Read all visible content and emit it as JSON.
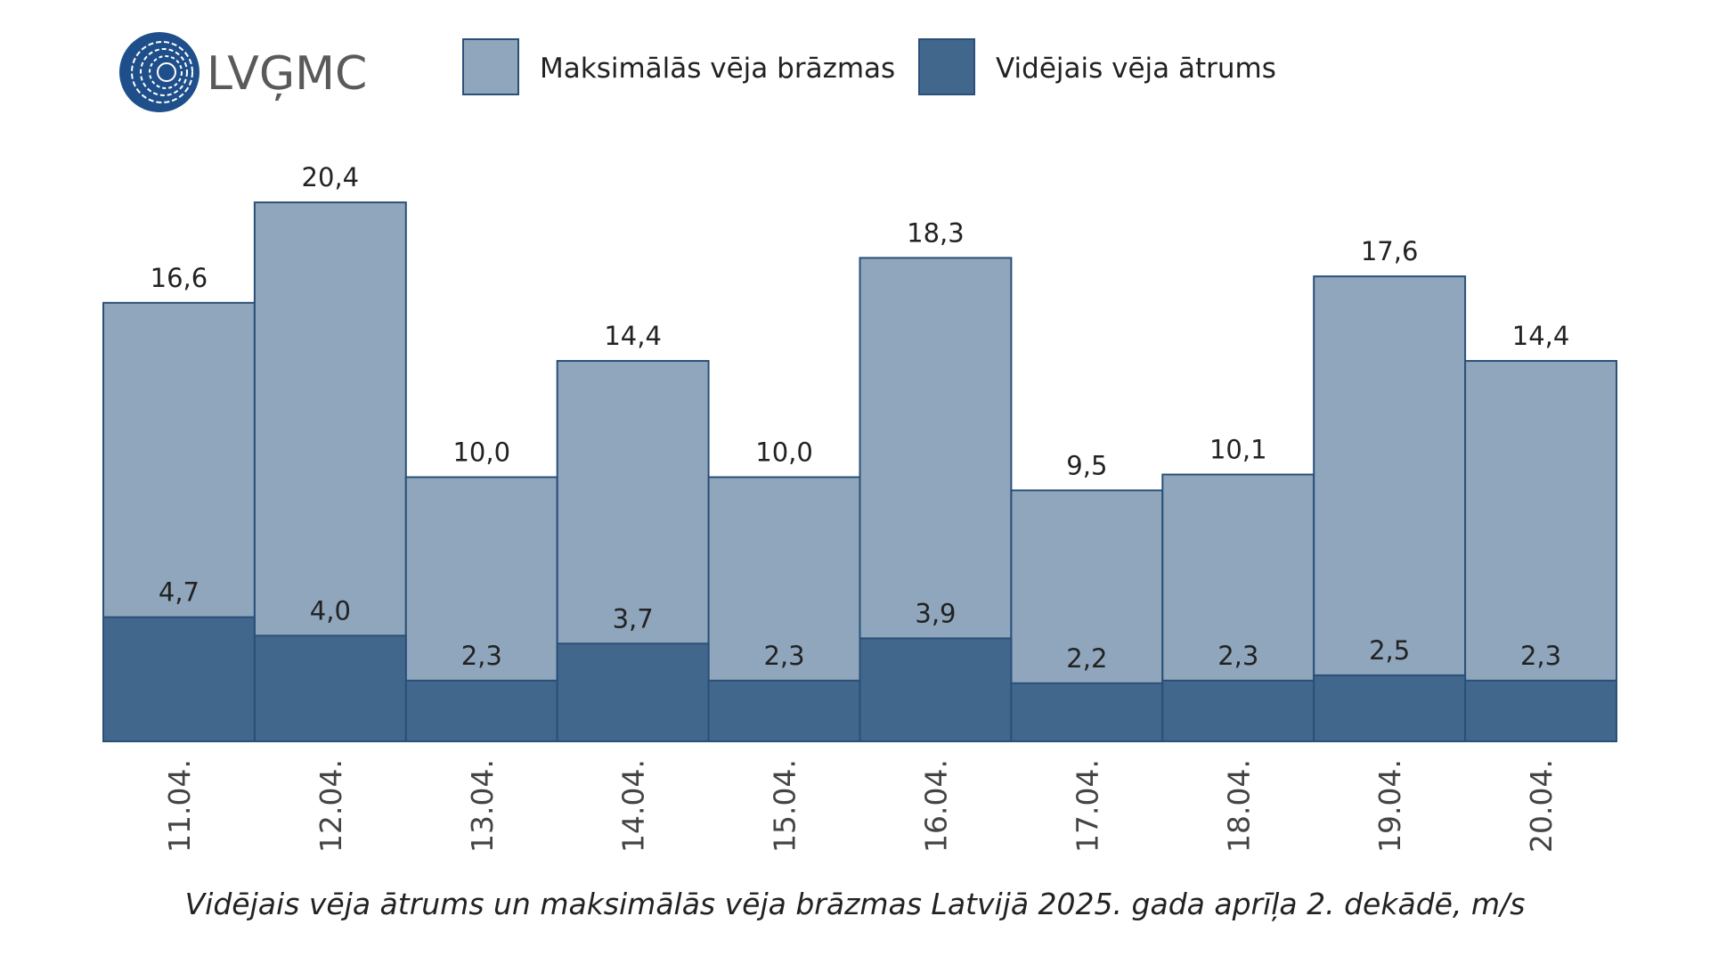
{
  "logo": "LVĢMC",
  "chart_data": {
    "type": "bar",
    "title": "Vidējais vēja ātrums un maksimālās vēja brāzmas Latvijā 2025. gada aprīļa 2. dekādē, m/s",
    "categories": [
      "11.04.",
      "12.04.",
      "13.04.",
      "14.04.",
      "15.04.",
      "16.04.",
      "17.04.",
      "18.04.",
      "19.04.",
      "20.04."
    ],
    "series": [
      {
        "name": "Maksimālās vēja brāzmas",
        "color": "#8fa6bd",
        "values": [
          16.6,
          20.4,
          10.0,
          14.4,
          10.0,
          18.3,
          9.5,
          10.1,
          17.6,
          14.4
        ],
        "value_labels": [
          "16,6",
          "20,4",
          "10,0",
          "14,4",
          "10,0",
          "18,3",
          "9,5",
          "10,1",
          "17,6",
          "14,4"
        ]
      },
      {
        "name": "Vidējais vēja ātrums",
        "color": "#41678d",
        "values": [
          4.7,
          4.0,
          2.3,
          3.7,
          2.3,
          3.9,
          2.2,
          2.3,
          2.5,
          2.3
        ],
        "value_labels": [
          "4,7",
          "4,0",
          "2,3",
          "3,7",
          "2,3",
          "3,9",
          "2,2",
          "2,3",
          "2,5",
          "2,3"
        ]
      }
    ]
  }
}
